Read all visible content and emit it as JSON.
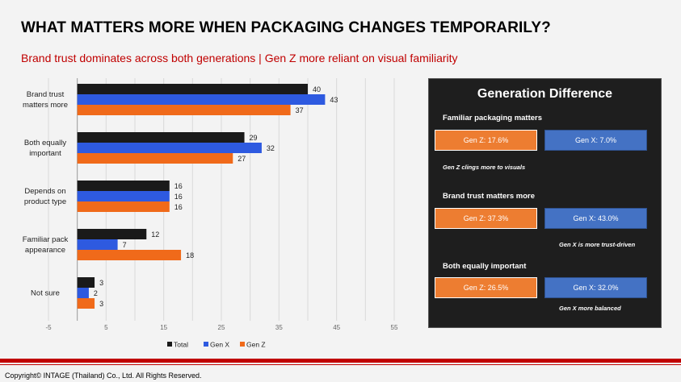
{
  "title": "WHAT MATTERS MORE WHEN PACKAGING CHANGES TEMPORARILY?",
  "subtitle": "Brand trust dominates across both generations | Gen Z more reliant on visual familiarity",
  "chart_data": {
    "type": "bar",
    "orientation": "horizontal",
    "categories": [
      [
        "Brand trust",
        "matters more"
      ],
      [
        "Both equally",
        "important"
      ],
      [
        "Depends on",
        "product type"
      ],
      [
        "Familiar pack",
        "appearance"
      ],
      [
        "Not sure"
      ]
    ],
    "series": [
      {
        "name": "Total",
        "color": "#1a1a1a",
        "values": [
          40,
          29,
          16,
          12,
          3
        ]
      },
      {
        "name": "Gen X",
        "color": "#2e5ae0",
        "values": [
          43,
          32,
          16,
          7,
          2
        ]
      },
      {
        "name": "Gen Z",
        "color": "#f06a1a",
        "values": [
          37,
          27,
          16,
          18,
          3
        ]
      }
    ],
    "xlim": [
      -5,
      55
    ],
    "xticks": [
      -5,
      5,
      15,
      25,
      35,
      45,
      55
    ],
    "grid": true,
    "legend": "bottom"
  },
  "panel": {
    "title": "Generation Difference",
    "sections": [
      {
        "heading": "Familiar packaging matters",
        "genz": "Gen Z: 17.6%",
        "genx": "Gen X: 7.0%",
        "note": "Gen Z clings more to visuals"
      },
      {
        "heading": "Brand trust matters more",
        "genz": "Gen Z: 37.3%",
        "genx": "Gen X: 43.0%",
        "note": "Gen X is more trust-driven"
      },
      {
        "heading": "Both equally important",
        "genz": "Gen Z: 26.5%",
        "genx": "Gen X: 32.0%",
        "note": "Gen X more balanced"
      }
    ]
  },
  "footer": "Copyright© INTAGE (Thailand) Co., Ltd. All Rights Reserved."
}
